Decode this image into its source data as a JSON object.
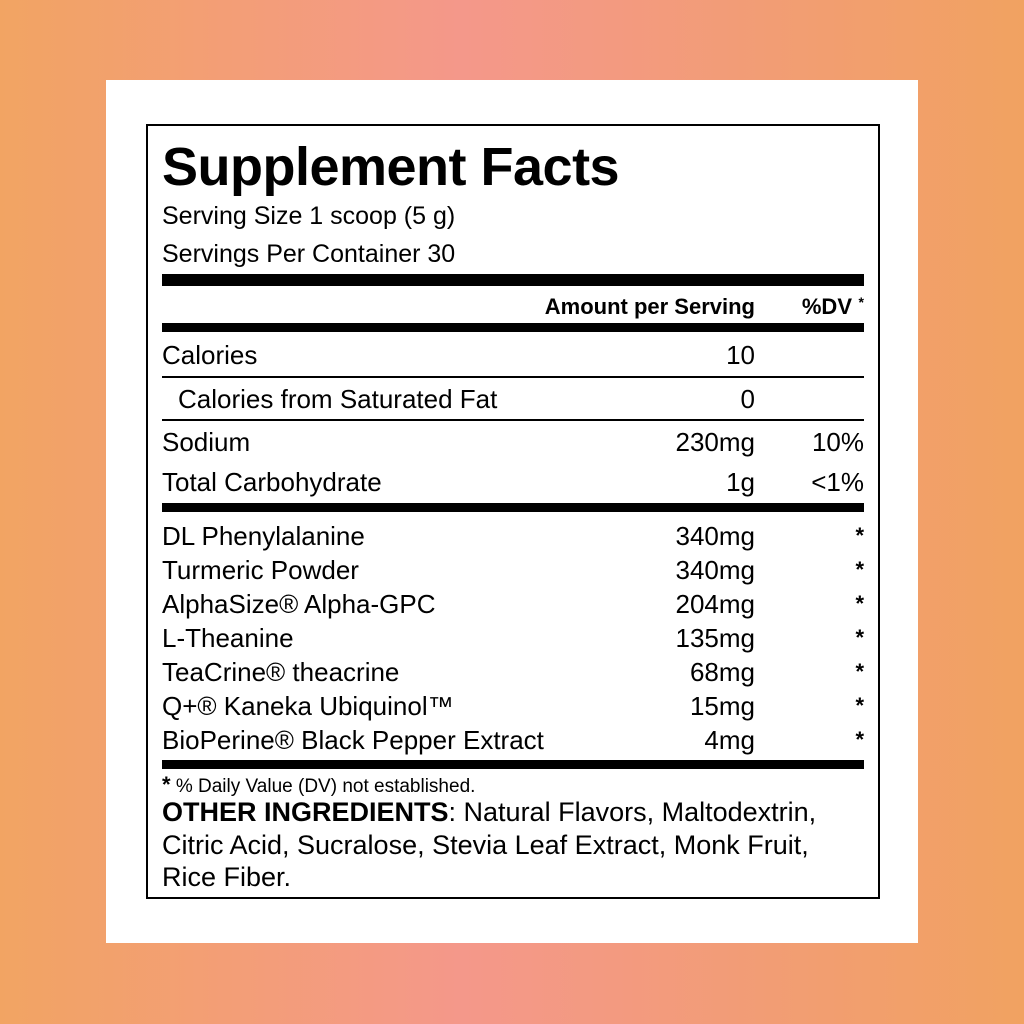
{
  "title": "Supplement Facts",
  "serving_size": "Serving Size 1 scoop (5 g)",
  "servings_per_container": "Servings Per Container 30",
  "header": {
    "amount": "Amount per Serving",
    "dv": "%DV",
    "dv_asterisk": "*"
  },
  "nutrients": [
    {
      "name": "Calories",
      "amount": "10",
      "dv": ""
    },
    {
      "name": "Calories from Saturated Fat",
      "amount": "0",
      "dv": ""
    },
    {
      "name": "Sodium",
      "amount": "230mg",
      "dv": "10%"
    },
    {
      "name": "Total Carbohydrate",
      "amount": "1g",
      "dv": "<1%"
    }
  ],
  "ingredients": [
    {
      "name": "DL Phenylalanine",
      "amount": "340mg",
      "dv": "*"
    },
    {
      "name": "Turmeric Powder",
      "amount": "340mg",
      "dv": "*"
    },
    {
      "name": "AlphaSize® Alpha-GPC",
      "amount": "204mg",
      "dv": "*"
    },
    {
      "name": "L-Theanine",
      "amount": "135mg",
      "dv": "*"
    },
    {
      "name": "TeaCrine® theacrine",
      "amount": "68mg",
      "dv": "*"
    },
    {
      "name": "Q+® Kaneka Ubiquinol™",
      "amount": "15mg",
      "dv": "*"
    },
    {
      "name": "BioPerine® Black Pepper Extract",
      "amount": "4mg",
      "dv": "*"
    }
  ],
  "footnote": {
    "asterisk": "*",
    "text": "% Daily Value (DV) not established."
  },
  "other_ingredients": {
    "label": "OTHER INGREDIENTS",
    "text": ": Natural Flavors, Maltodextrin, Citric Acid, Sucralose, Stevia Leaf Extract, Monk Fruit, Rice Fiber."
  }
}
